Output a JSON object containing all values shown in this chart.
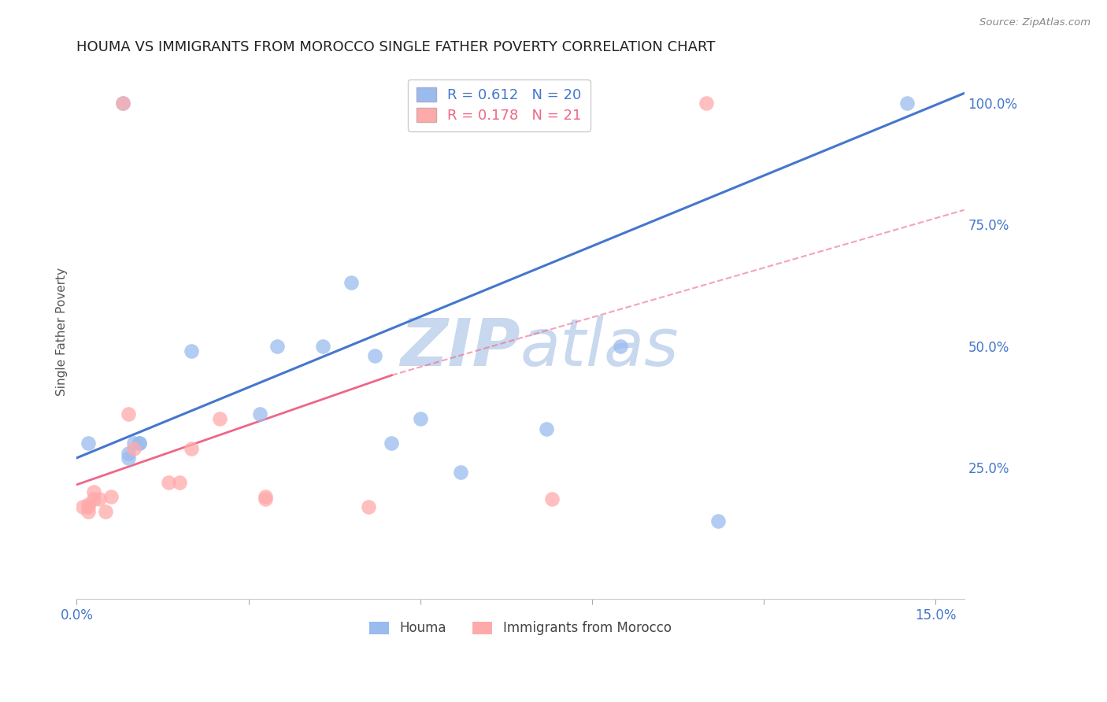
{
  "title": "HOUMA VS IMMIGRANTS FROM MOROCCO SINGLE FATHER POVERTY CORRELATION CHART",
  "source": "Source: ZipAtlas.com",
  "ylabel": "Single Father Poverty",
  "xlim": [
    0.0,
    0.155
  ],
  "ylim": [
    -0.02,
    1.08
  ],
  "x_ticks": [
    0.0,
    0.03,
    0.06,
    0.09,
    0.12,
    0.15
  ],
  "y_ticks": [
    0.0,
    0.25,
    0.5,
    0.75,
    1.0
  ],
  "y_tick_labels": [
    "",
    "25.0%",
    "50.0%",
    "75.0%",
    "100.0%"
  ],
  "houma_x": [
    0.002,
    0.008,
    0.009,
    0.009,
    0.01,
    0.011,
    0.011,
    0.02,
    0.032,
    0.035,
    0.043,
    0.048,
    0.052,
    0.055,
    0.06,
    0.067,
    0.082,
    0.112,
    0.145,
    0.095
  ],
  "houma_y": [
    0.3,
    1.0,
    0.27,
    0.28,
    0.3,
    0.3,
    0.3,
    0.49,
    0.36,
    0.5,
    0.5,
    0.63,
    0.48,
    0.3,
    0.35,
    0.24,
    0.33,
    0.14,
    1.0,
    0.5
  ],
  "morocco_x": [
    0.001,
    0.002,
    0.002,
    0.003,
    0.003,
    0.004,
    0.005,
    0.006,
    0.008,
    0.009,
    0.01,
    0.016,
    0.018,
    0.02,
    0.025,
    0.033,
    0.033,
    0.051,
    0.083,
    0.11,
    0.002
  ],
  "morocco_y": [
    0.17,
    0.16,
    0.175,
    0.2,
    0.185,
    0.185,
    0.16,
    0.19,
    1.0,
    0.36,
    0.29,
    0.22,
    0.22,
    0.29,
    0.35,
    0.185,
    0.19,
    0.17,
    0.185,
    1.0,
    0.17
  ],
  "houma_line": [
    0.0,
    0.155,
    0.27,
    1.02
  ],
  "morocco_line_solid": [
    0.0,
    0.055,
    0.215,
    0.44
  ],
  "morocco_line_dashed": [
    0.055,
    0.155,
    0.44,
    0.78
  ],
  "houma_R": 0.612,
  "houma_N": 20,
  "morocco_R": 0.178,
  "morocco_N": 21,
  "houma_scatter_color": "#99bbee",
  "morocco_scatter_color": "#ffaaaa",
  "houma_line_color": "#4477cc",
  "morocco_line_color": "#ee6688",
  "watermark_color": "#c8d8ee",
  "background_color": "#ffffff",
  "grid_color": "#dddddd",
  "axis_color": "#4477cc",
  "title_color": "#222222"
}
